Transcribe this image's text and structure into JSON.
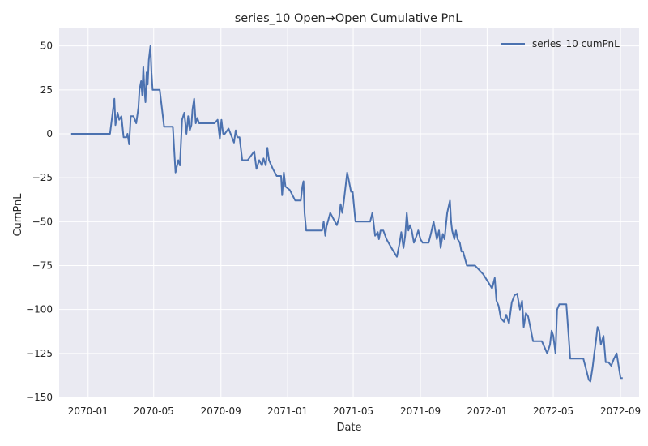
{
  "chart_data": {
    "type": "line",
    "title": "series_10 Open→Open Cumulative PnL",
    "xlabel": "Date",
    "ylabel": "CumPnL",
    "x_axis_type": "date",
    "xlim": [
      "2069-11-09",
      "2072-10-05"
    ],
    "ylim": [
      -150,
      60
    ],
    "x_ticks": [
      "2070-01-01",
      "2070-05-01",
      "2070-09-01",
      "2071-01-01",
      "2071-05-01",
      "2071-09-01",
      "2072-01-01",
      "2072-05-01",
      "2072-09-01"
    ],
    "x_tick_labels": [
      "2070-01",
      "2070-05",
      "2070-09",
      "2071-01",
      "2071-05",
      "2071-09",
      "2072-01",
      "2072-05",
      "2072-09"
    ],
    "y_ticks": [
      50,
      25,
      0,
      -25,
      -50,
      -75,
      -100,
      -125,
      -150
    ],
    "y_tick_labels": [
      "50",
      "25",
      "0",
      "−25",
      "−50",
      "−75",
      "−100",
      "−125",
      "−150"
    ],
    "grid": true,
    "legend_position": "top-right",
    "colors": {
      "series": "#4c72b0",
      "background": "#eaeaf2",
      "grid": "#ffffff"
    },
    "series": [
      {
        "name": "series_10 cumPnL",
        "x": [
          "2069-12-01",
          "2070-01-15",
          "2070-02-10",
          "2070-02-14",
          "2070-02-18",
          "2070-02-20",
          "2070-02-24",
          "2070-02-27",
          "2070-03-03",
          "2070-03-07",
          "2070-03-09",
          "2070-03-12",
          "2070-03-14",
          "2070-03-17",
          "2070-03-20",
          "2070-03-25",
          "2070-03-30",
          "2070-04-03",
          "2070-04-05",
          "2070-04-08",
          "2070-04-10",
          "2070-04-12",
          "2070-04-14",
          "2070-04-16",
          "2070-04-18",
          "2070-04-20",
          "2070-04-22",
          "2070-04-25",
          "2070-04-27",
          "2070-04-29",
          "2070-05-01",
          "2070-05-02",
          "2070-05-04",
          "2070-05-06",
          "2070-05-09",
          "2070-05-12",
          "2070-05-20",
          "2070-06-05",
          "2070-06-10",
          "2070-06-15",
          "2070-06-18",
          "2070-06-22",
          "2070-06-26",
          "2070-06-30",
          "2070-07-03",
          "2070-07-06",
          "2070-07-09",
          "2070-07-11",
          "2070-07-14",
          "2070-07-17",
          "2070-07-20",
          "2070-07-23",
          "2070-07-26",
          "2070-08-10",
          "2070-08-20",
          "2070-08-26",
          "2070-08-30",
          "2070-09-02",
          "2070-09-05",
          "2070-09-08",
          "2070-09-15",
          "2070-09-25",
          "2070-09-28",
          "2070-10-01",
          "2070-10-05",
          "2070-10-10",
          "2070-10-20",
          "2070-11-01",
          "2070-11-05",
          "2070-11-10",
          "2070-11-15",
          "2070-11-18",
          "2070-11-22",
          "2070-11-25",
          "2070-11-28",
          "2070-12-05",
          "2070-12-12",
          "2070-12-16",
          "2070-12-20",
          "2070-12-22",
          "2070-12-25",
          "2070-12-28",
          "2071-01-05",
          "2071-01-15",
          "2071-01-25",
          "2071-01-28",
          "2071-01-30",
          "2071-02-01",
          "2071-02-04",
          "2071-02-07",
          "2071-02-10",
          "2071-02-20",
          "2071-03-05",
          "2071-03-08",
          "2071-03-11",
          "2071-03-13",
          "2071-03-20",
          "2071-04-01",
          "2071-04-05",
          "2071-04-08",
          "2071-04-11",
          "2071-04-14",
          "2071-04-17",
          "2071-04-20",
          "2071-04-24",
          "2071-04-27",
          "2071-04-30",
          "2071-05-05",
          "2071-05-15",
          "2071-05-25",
          "2071-06-01",
          "2071-06-05",
          "2071-06-10",
          "2071-06-15",
          "2071-06-17",
          "2071-06-20",
          "2071-06-25",
          "2071-07-01",
          "2071-07-10",
          "2071-07-20",
          "2071-07-25",
          "2071-07-28",
          "2071-08-01",
          "2071-08-04",
          "2071-08-07",
          "2071-08-10",
          "2071-08-13",
          "2071-08-16",
          "2071-08-20",
          "2071-08-25",
          "2071-08-28",
          "2071-09-01",
          "2071-09-05",
          "2071-09-10",
          "2071-09-16",
          "2071-09-20",
          "2071-09-25",
          "2071-10-01",
          "2071-10-05",
          "2071-10-08",
          "2071-10-12",
          "2071-10-15",
          "2071-10-20",
          "2071-10-25",
          "2071-10-27",
          "2071-10-29",
          "2071-11-02",
          "2071-11-05",
          "2071-11-08",
          "2071-11-12",
          "2071-11-15",
          "2071-11-18",
          "2071-11-25",
          "2071-12-10",
          "2071-12-25",
          "2072-01-10",
          "2072-01-15",
          "2072-01-18",
          "2072-01-22",
          "2072-01-26",
          "2072-02-01",
          "2072-02-05",
          "2072-02-10",
          "2072-02-15",
          "2072-02-20",
          "2072-02-25",
          "2072-03-01",
          "2072-03-05",
          "2072-03-08",
          "2072-03-12",
          "2072-03-16",
          "2072-03-20",
          "2072-03-25",
          "2072-03-30",
          "2072-04-10",
          "2072-04-20",
          "2072-04-25",
          "2072-04-28",
          "2072-05-01",
          "2072-05-05",
          "2072-05-08",
          "2072-05-12",
          "2072-05-16",
          "2072-05-20",
          "2072-05-25",
          "2072-06-01",
          "2072-06-10",
          "2072-06-25",
          "2072-07-05",
          "2072-07-08",
          "2072-07-12",
          "2072-07-15",
          "2072-07-18",
          "2072-07-21",
          "2072-07-24",
          "2072-07-27",
          "2072-08-01",
          "2072-08-05",
          "2072-08-10",
          "2072-08-15",
          "2072-08-20",
          "2072-08-25",
          "2072-09-01",
          "2072-09-05"
        ],
        "values": [
          0,
          0,
          0,
          10,
          20,
          5,
          12,
          8,
          10,
          -2,
          -2,
          -2,
          0,
          -6,
          10,
          10,
          6,
          15,
          25,
          30,
          22,
          38,
          25,
          18,
          35,
          28,
          42,
          50,
          35,
          25,
          25,
          25,
          25,
          25,
          25,
          25,
          4,
          4,
          -22,
          -15,
          -18,
          8,
          12,
          0,
          10,
          2,
          5,
          14,
          20,
          6,
          9,
          6,
          6,
          6,
          6,
          8,
          -3,
          8,
          0,
          0,
          3,
          -5,
          2,
          -2,
          -2,
          -15,
          -15,
          -10,
          -20,
          -15,
          -18,
          -14,
          -18,
          -8,
          -15,
          -20,
          -24,
          -24,
          -24,
          -35,
          -22,
          -30,
          -32,
          -38,
          -38,
          -30,
          -27,
          -45,
          -55,
          -55,
          -55,
          -55,
          -55,
          -50,
          -58,
          -53,
          -45,
          -52,
          -48,
          -40,
          -45,
          -38,
          -30,
          -22,
          -28,
          -33,
          -33,
          -50,
          -50,
          -50,
          -50,
          -45,
          -58,
          -56,
          -60,
          -55,
          -55,
          -60,
          -65,
          -70,
          -62,
          -56,
          -65,
          -58,
          -45,
          -55,
          -52,
          -55,
          -62,
          -58,
          -55,
          -60,
          -62,
          -62,
          -62,
          -57,
          -50,
          -60,
          -55,
          -65,
          -57,
          -60,
          -45,
          -38,
          -50,
          -55,
          -60,
          -55,
          -60,
          -62,
          -67,
          -67,
          -75,
          -75,
          -80,
          -88,
          -82,
          -95,
          -98,
          -105,
          -107,
          -103,
          -108,
          -96,
          -92,
          -91,
          -100,
          -95,
          -110,
          -102,
          -104,
          -110,
          -118,
          -118,
          -118,
          -125,
          -120,
          -112,
          -115,
          -125,
          -100,
          -97,
          -97,
          -97,
          -97,
          -128,
          -128,
          -128,
          -140,
          -141,
          -133,
          -125,
          -118,
          -110,
          -112,
          -120,
          -115,
          -130,
          -130,
          -132,
          -128,
          -125,
          -139,
          -139
        ]
      }
    ]
  }
}
